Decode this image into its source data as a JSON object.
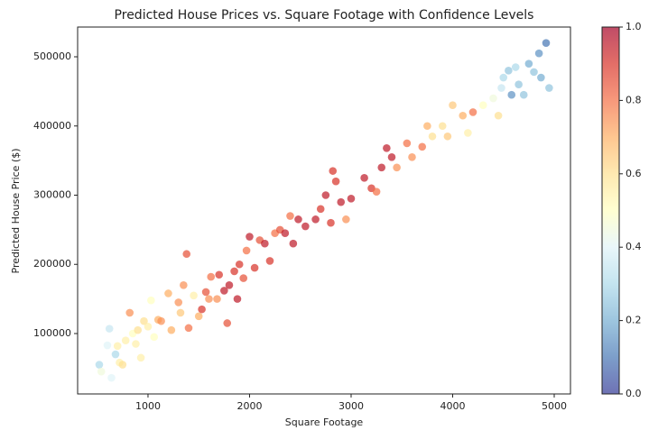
{
  "chart_data": {
    "type": "scatter",
    "title": "Predicted House Prices vs. Square Footage with Confidence Levels",
    "x_label": "Square Footage",
    "y_label": "Predicted House Price ($)",
    "xlim": [
      307,
      5160
    ],
    "ylim": [
      12700,
      543000
    ],
    "xticks": [
      1000,
      2000,
      3000,
      4000,
      5000
    ],
    "yticks": [
      100000,
      200000,
      300000,
      400000,
      500000
    ],
    "alpha": 0.7,
    "colormap": [
      "#313695",
      "#4575b4",
      "#74add1",
      "#abd9e9",
      "#e0f3f8",
      "#ffffbf",
      "#fee090",
      "#fdae61",
      "#f46d43",
      "#d73027",
      "#a50026"
    ],
    "clim": [
      0,
      1
    ],
    "cticks": [
      {
        "value": 0,
        "label": "0.0"
      },
      {
        "value": 0.2,
        "label": "0.2"
      },
      {
        "value": 0.4,
        "label": "0.4"
      },
      {
        "value": 0.6,
        "label": "0.6"
      },
      {
        "value": 0.8,
        "label": "0.8"
      },
      {
        "value": 1,
        "label": "1.0"
      }
    ],
    "series": [
      {
        "x": [
          520,
          540,
          600,
          620,
          640,
          680,
          700,
          720,
          750,
          780,
          820,
          850,
          880,
          900,
          930,
          960,
          1000,
          1030,
          1060,
          1100,
          1130,
          1200,
          1230,
          1300,
          1320,
          1350,
          1380,
          1400,
          1450,
          1500,
          1530,
          1570,
          1600,
          1620,
          1680,
          1700,
          1750,
          1780,
          1800,
          1850,
          1880,
          1900,
          1940,
          1970,
          2000,
          2050,
          2100,
          2150,
          2200,
          2250,
          2300,
          2350,
          2400,
          2430,
          2480,
          2550,
          2650,
          2700,
          2750,
          2800,
          2820,
          2850,
          2900,
          2950,
          3000,
          3130,
          3200,
          3250,
          3300,
          3350,
          3400,
          3450,
          3550,
          3600,
          3700,
          3750,
          3800,
          3900,
          3950,
          4000,
          4100,
          4150,
          4200,
          4300,
          4400,
          4450,
          4480,
          4500,
          4550,
          4580,
          4620,
          4650,
          4700,
          4750,
          4800,
          4850,
          4870,
          4920,
          4950
        ],
        "values": [
          55000,
          45000,
          83000,
          107000,
          36000,
          70000,
          82000,
          58000,
          55000,
          90000,
          130000,
          100000,
          85000,
          105000,
          65000,
          118000,
          110000,
          148000,
          95000,
          120000,
          118000,
          158000,
          105000,
          145000,
          130000,
          170000,
          215000,
          108000,
          155000,
          125000,
          135000,
          160000,
          150000,
          182000,
          150000,
          185000,
          162000,
          115000,
          170000,
          190000,
          150000,
          200000,
          180000,
          220000,
          240000,
          195000,
          235000,
          230000,
          205000,
          245000,
          250000,
          245000,
          270000,
          230000,
          265000,
          255000,
          265000,
          280000,
          300000,
          260000,
          335000,
          320000,
          290000,
          265000,
          295000,
          325000,
          310000,
          305000,
          340000,
          368000,
          355000,
          340000,
          375000,
          355000,
          370000,
          400000,
          385000,
          400000,
          385000,
          430000,
          415000,
          390000,
          420000,
          430000,
          440000,
          415000,
          455000,
          470000,
          480000,
          445000,
          485000,
          460000,
          445000,
          490000,
          478000,
          505000,
          470000,
          520000,
          455000
        ],
        "c": [
          0.3,
          0.45,
          0.4,
          0.35,
          0.4,
          0.3,
          0.55,
          0.55,
          0.6,
          0.55,
          0.75,
          0.5,
          0.55,
          0.6,
          0.55,
          0.6,
          0.55,
          0.5,
          0.5,
          0.7,
          0.75,
          0.7,
          0.7,
          0.75,
          0.65,
          0.75,
          0.85,
          0.8,
          0.55,
          0.7,
          0.9,
          0.85,
          0.75,
          0.8,
          0.75,
          0.9,
          0.95,
          0.85,
          0.95,
          0.9,
          0.95,
          0.9,
          0.85,
          0.8,
          0.95,
          0.9,
          0.85,
          0.95,
          0.9,
          0.8,
          0.85,
          0.95,
          0.8,
          0.95,
          0.95,
          0.95,
          0.95,
          0.9,
          0.95,
          0.9,
          0.9,
          0.9,
          0.95,
          0.75,
          0.95,
          0.95,
          0.9,
          0.8,
          0.95,
          0.95,
          0.95,
          0.75,
          0.8,
          0.75,
          0.8,
          0.7,
          0.6,
          0.6,
          0.65,
          0.65,
          0.7,
          0.55,
          0.8,
          0.5,
          0.45,
          0.6,
          0.35,
          0.3,
          0.25,
          0.15,
          0.3,
          0.25,
          0.25,
          0.2,
          0.25,
          0.15,
          0.2,
          0.1,
          0.25
        ]
      }
    ]
  }
}
